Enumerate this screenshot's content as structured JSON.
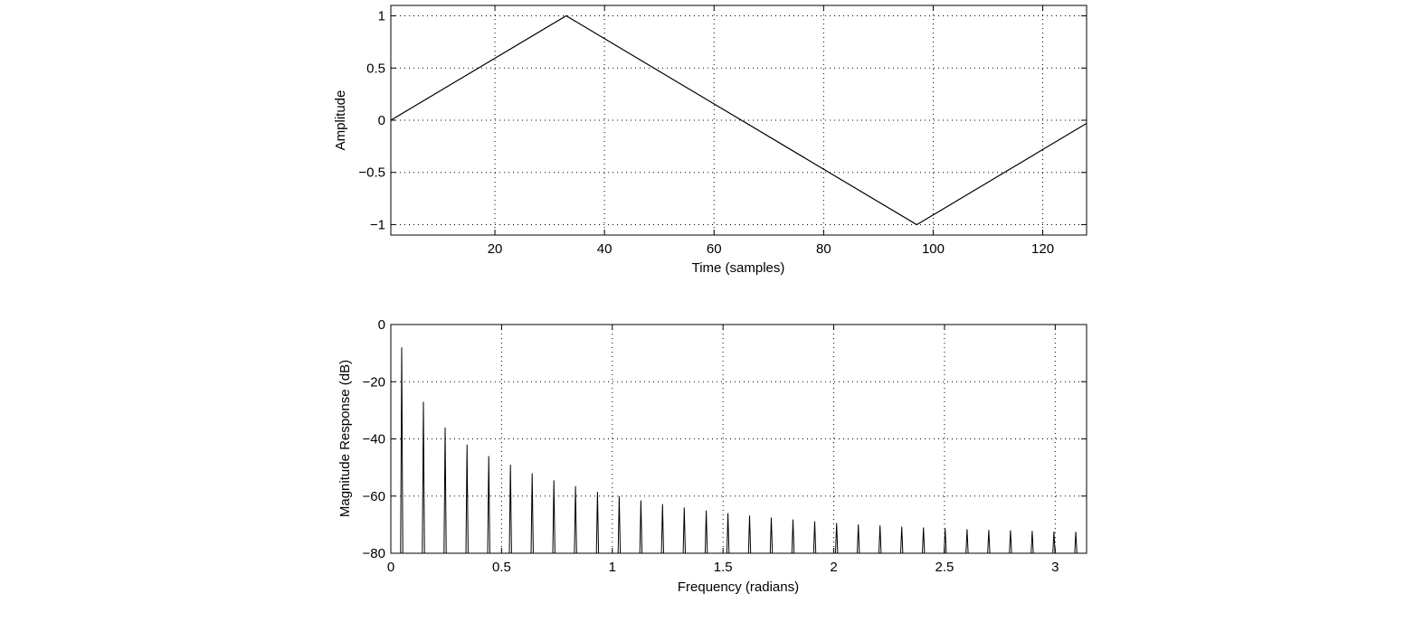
{
  "chart_data": [
    {
      "type": "line",
      "title": "",
      "xlabel": "Time (samples)",
      "ylabel": "Amplitude",
      "xlim": [
        1,
        128
      ],
      "ylim": [
        -1.1,
        1.1
      ],
      "xticks": [
        20,
        40,
        60,
        80,
        100,
        120
      ],
      "xtick_labels": [
        "20",
        "40",
        "60",
        "80",
        "100",
        "120"
      ],
      "yticks": [
        -1,
        -0.5,
        0,
        0.5,
        1
      ],
      "ytick_labels": [
        "−1",
        "−0.5",
        "0",
        "0.5",
        "1"
      ],
      "grid": true,
      "series": [
        {
          "x": [
            1,
            33,
            97,
            128
          ],
          "y": [
            0,
            1,
            -1,
            -0.03
          ]
        }
      ]
    },
    {
      "type": "line",
      "title": "",
      "xlabel": "Frequency (radians)",
      "ylabel": "Magnitude Response (dB)",
      "xlim": [
        0,
        3.1416
      ],
      "ylim": [
        -80,
        0
      ],
      "xticks": [
        0,
        0.5,
        1,
        1.5,
        2,
        2.5,
        3
      ],
      "xtick_labels": [
        "0",
        "0.5",
        "1",
        "1.5",
        "2",
        "2.5",
        "3"
      ],
      "yticks": [
        -80,
        -60,
        -40,
        -20,
        0
      ],
      "ytick_labels": [
        "−80",
        "−60",
        "−40",
        "−20",
        "0"
      ],
      "grid": true,
      "series": [
        {
          "x": [
            0.049,
            0.147,
            0.245,
            0.344,
            0.442,
            0.54,
            0.638,
            0.736,
            0.834,
            0.933,
            1.031,
            1.129,
            1.227,
            1.325,
            1.424,
            1.522,
            1.62,
            1.718,
            1.816,
            1.914,
            2.013,
            2.111,
            2.209,
            2.307,
            2.405,
            2.503,
            2.602,
            2.7,
            2.798,
            2.896,
            2.994,
            3.093
          ],
          "y": [
            -8,
            -27,
            -36,
            -42,
            -46,
            -49,
            -52,
            -54.5,
            -56.5,
            -58.5,
            -60,
            -61.5,
            -62.8,
            -64,
            -65,
            -66,
            -66.8,
            -67.5,
            -68.2,
            -68.8,
            -69.4,
            -69.9,
            -70.3,
            -70.7,
            -71,
            -71.3,
            -71.6,
            -71.8,
            -72,
            -72.2,
            -72.4,
            -72.5
          ]
        }
      ]
    }
  ]
}
